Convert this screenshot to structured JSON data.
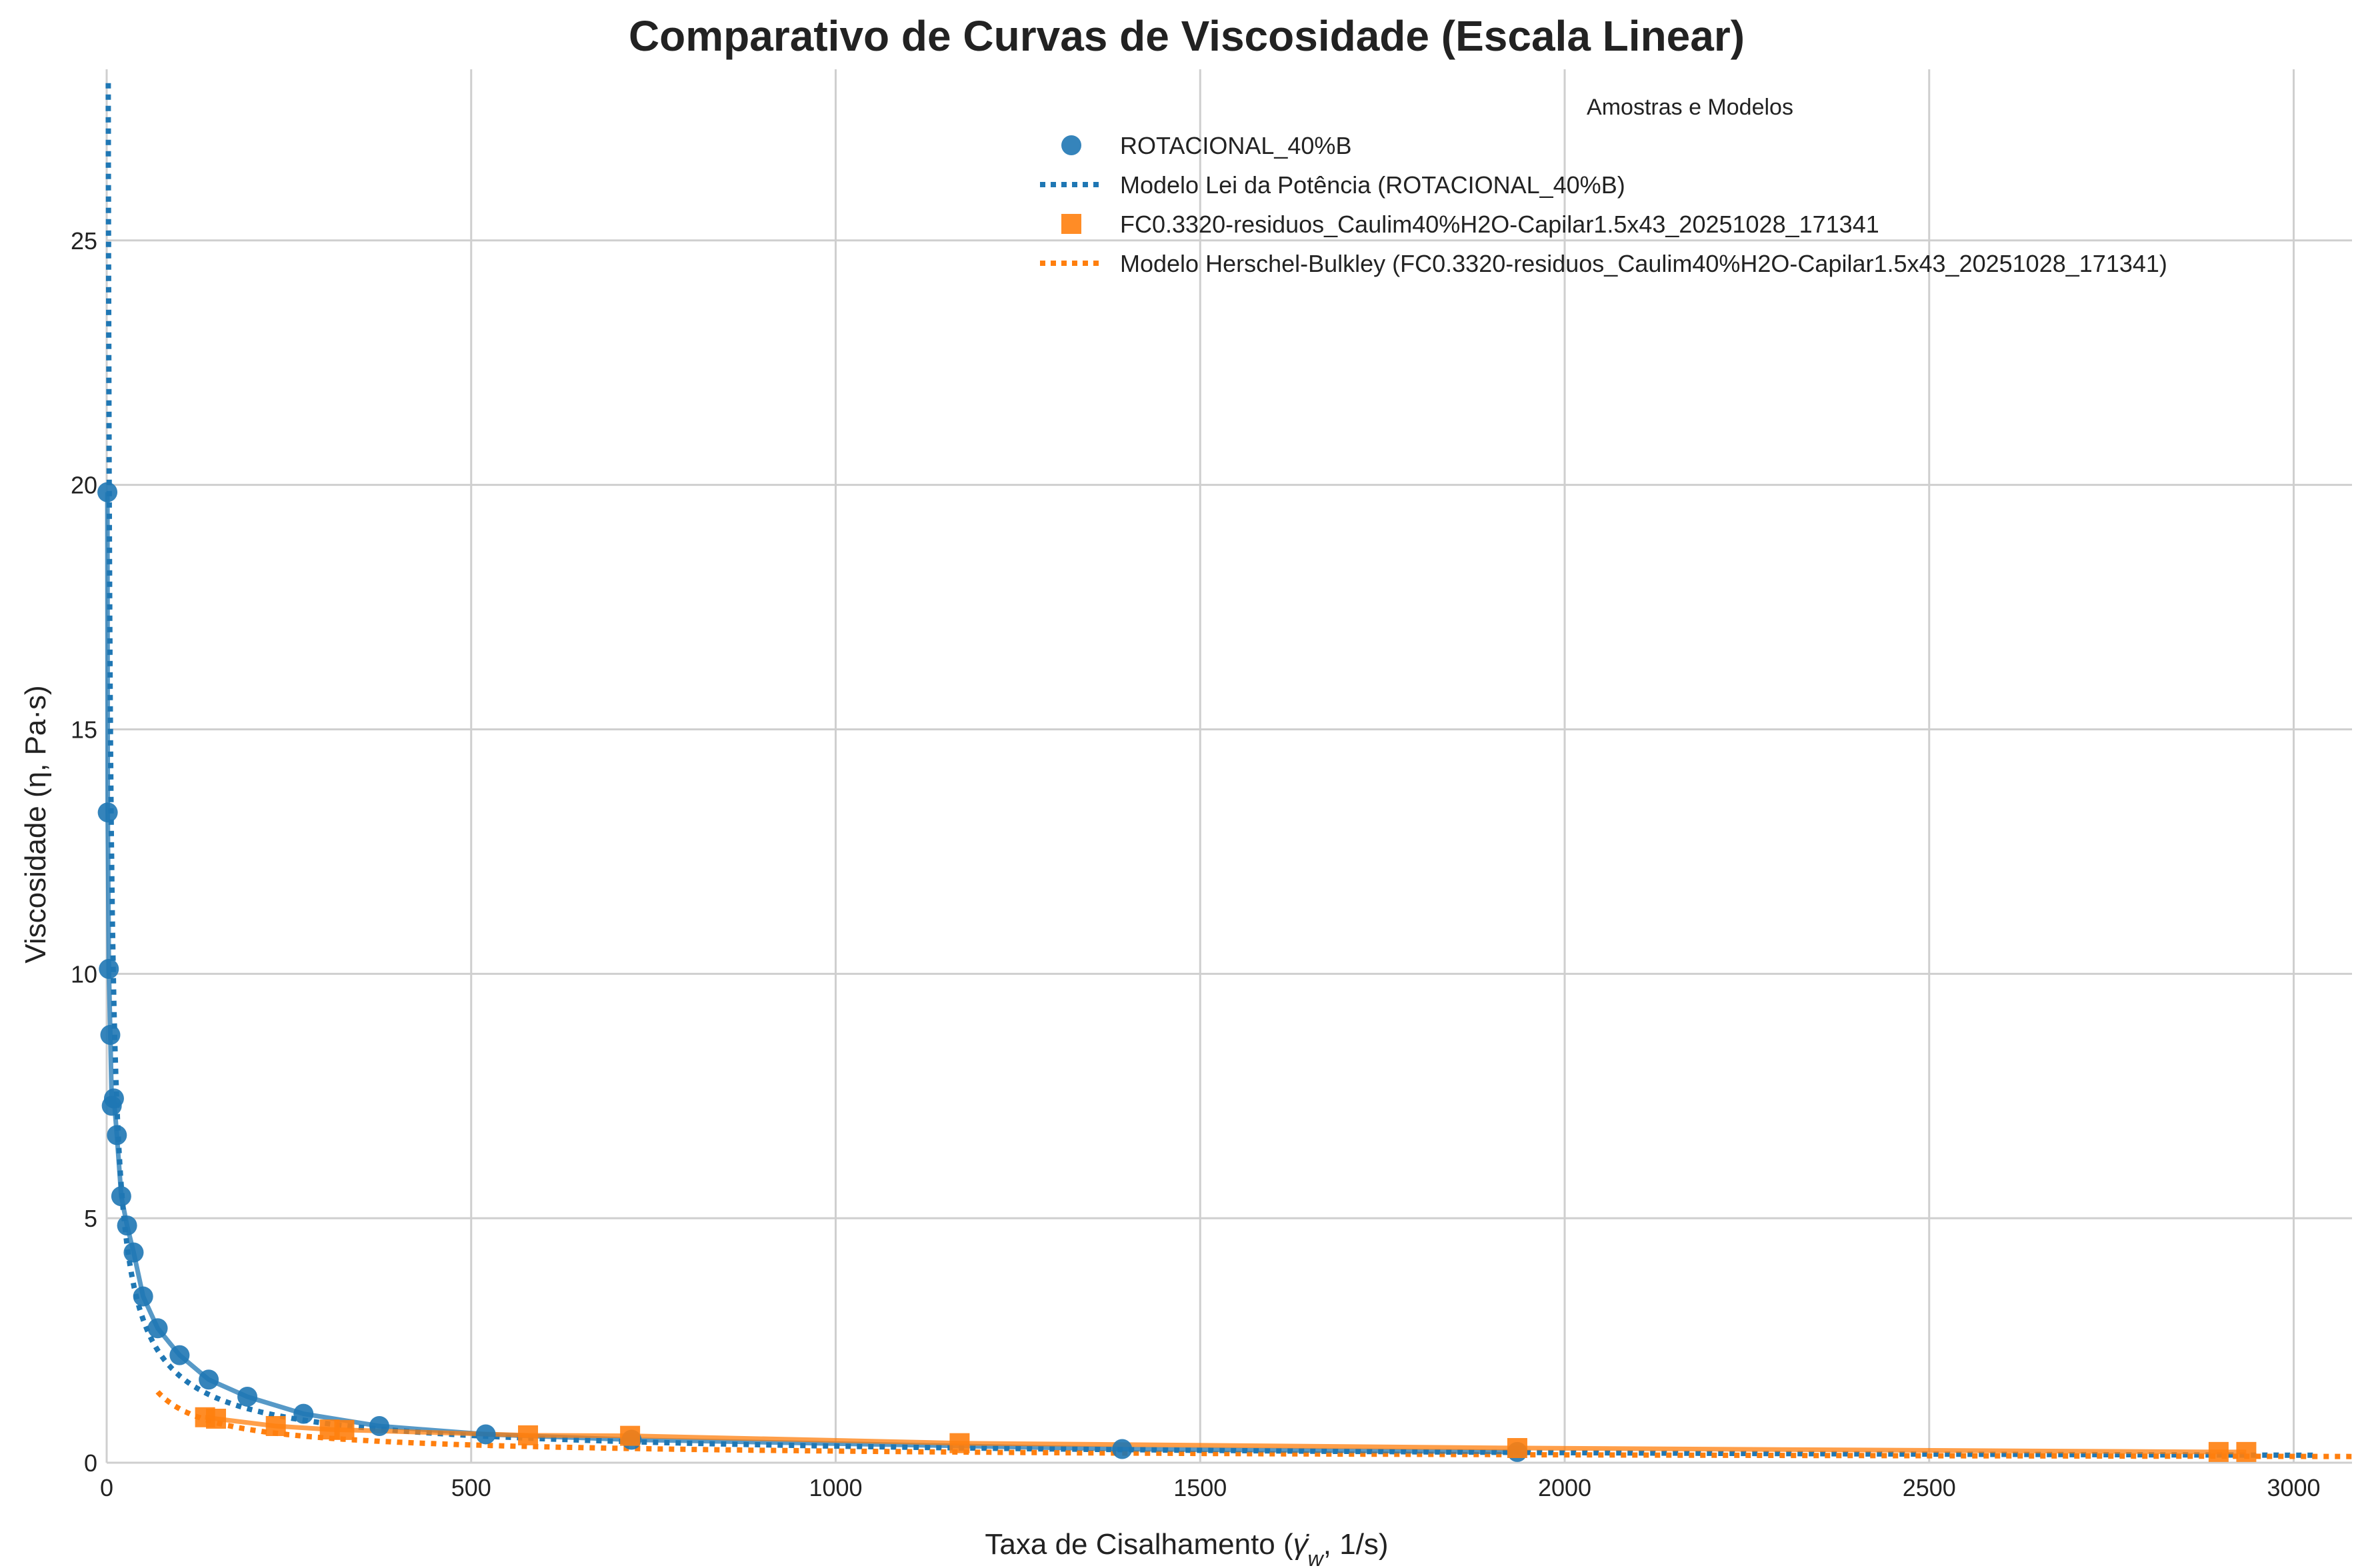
{
  "chart_data": {
    "type": "scatter",
    "title": "Comparativo de Curvas de Viscosidade (Escala Linear)",
    "xlabel": "Taxa de Cisalhamento",
    "xlabel_symbol": "γ̇",
    "xlabel_symbol_sub": "w",
    "xlabel_unit": ", 1/s)",
    "ylabel": "Viscosidade (η, Pa·s)",
    "xlim": [
      0,
      3080
    ],
    "ylim": [
      0,
      28.5
    ],
    "x_ticks": [
      0,
      500,
      1000,
      1500,
      2000,
      2500,
      3000
    ],
    "y_ticks": [
      0,
      5,
      10,
      15,
      20,
      25
    ],
    "grid": true,
    "legend_title": "Amostras e Modelos",
    "legend_position": "top-right",
    "series": [
      {
        "name": "ROTACIONAL_40%B",
        "kind": "scatter",
        "marker": "circle",
        "color": "#1f77b4",
        "x": [
          1,
          1.5,
          3,
          5,
          7,
          10,
          14,
          20,
          28,
          37,
          50,
          70,
          100,
          140,
          193,
          270,
          374,
          520,
          720,
          1393,
          1935
        ],
        "y": [
          19.85,
          13.3,
          10.1,
          8.75,
          7.3,
          7.45,
          6.7,
          5.45,
          4.85,
          4.3,
          3.4,
          2.75,
          2.2,
          1.7,
          1.35,
          1.0,
          0.75,
          0.58,
          0.47,
          0.28,
          0.22
        ]
      },
      {
        "name": "Modelo Lei da Potência (ROTACIONAL_40%B)",
        "kind": "line",
        "dash": "dotted",
        "color": "#1f77b4",
        "model": "power-law",
        "K": 49.0,
        "n": 0.28,
        "x_range": [
          0.3,
          3080
        ]
      },
      {
        "name": "FC0.3320-residuos_Caulim40%H2O-Capilar1.5x43_20251028_171341",
        "kind": "scatter",
        "marker": "square",
        "color": "#ff7f0e",
        "x": [
          135,
          150,
          232,
          306,
          326,
          578,
          718,
          1170,
          1935,
          2897,
          2935
        ],
        "y": [
          0.93,
          0.9,
          0.75,
          0.68,
          0.67,
          0.56,
          0.55,
          0.4,
          0.3,
          0.22,
          0.22
        ]
      },
      {
        "name": "Modelo Herschel-Bulkley (FC0.3320-residuos_Caulim40%H2O-Capilar1.5x43_20251028_171341)",
        "kind": "line",
        "dash": "dotted",
        "color": "#ff7f0e",
        "model": "herschel-bulkley",
        "tau0": 60,
        "K": 4.0,
        "n": 0.55,
        "x_range": [
          70,
          3080
        ]
      }
    ]
  }
}
